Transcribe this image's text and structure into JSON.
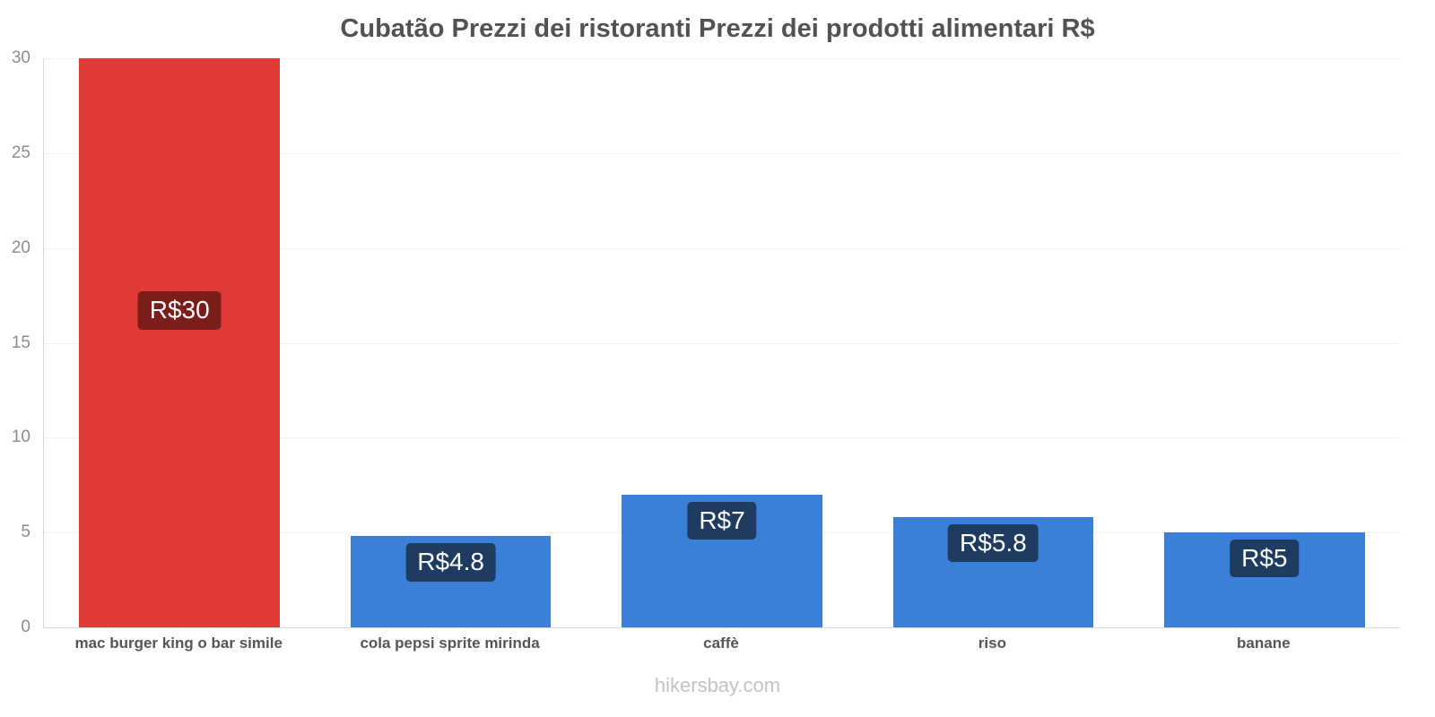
{
  "footer": "hikersbay.com",
  "chart_data": {
    "type": "bar",
    "title": "Cubatão Prezzi dei ristoranti Prezzi dei prodotti alimentari R$",
    "categories": [
      "mac burger king o bar simile",
      "cola pepsi sprite mirinda",
      "caffè",
      "riso",
      "banane"
    ],
    "values": [
      30,
      4.8,
      7,
      5.8,
      5
    ],
    "value_labels": [
      "R$30",
      "R$4.8",
      "R$7",
      "R$5.8",
      "R$5"
    ],
    "currency": "R$",
    "bar_colors": [
      "#e03b37",
      "#3b80d8",
      "#3b80d8",
      "#3b80d8",
      "#3b80d8"
    ],
    "value_label_colors": [
      "#7a1e1a",
      "#1e3c60",
      "#1e3c60",
      "#1e3c60",
      "#1e3c60"
    ],
    "xlabel": "",
    "ylabel": "",
    "ylim": [
      0,
      30
    ],
    "yticks": [
      0,
      5,
      10,
      15,
      20,
      25,
      30
    ],
    "grid": true,
    "legend_position": "none",
    "axis_color": "#d8d8d8",
    "tick_label_color": "#8c8c8c",
    "category_label_color": "#555555",
    "title_color": "#525252",
    "watermark_color": "#c2c2c2"
  }
}
